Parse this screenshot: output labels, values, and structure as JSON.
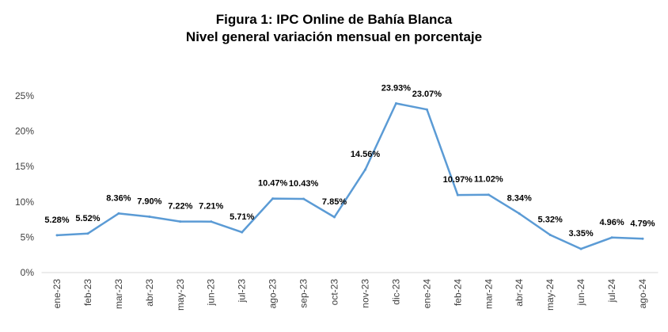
{
  "chart_data": {
    "type": "line",
    "title": "Figura 1: IPC Online de Bahía Blanca",
    "subtitle": "Nivel general variación mensual en porcentaje",
    "xlabel": "",
    "ylabel": "",
    "categories": [
      "ene-23",
      "feb-23",
      "mar-23",
      "abr-23",
      "may-23",
      "jun-23",
      "jul-23",
      "ago-23",
      "sep-23",
      "oct-23",
      "nov-23",
      "dic-23",
      "ene-24",
      "feb-24",
      "mar-24",
      "abr-24",
      "may-24",
      "jun-24",
      "jul-24",
      "ago-24"
    ],
    "series": [
      {
        "values": [
          5.28,
          5.52,
          8.36,
          7.9,
          7.22,
          7.21,
          5.71,
          10.47,
          10.43,
          7.85,
          14.56,
          23.93,
          23.07,
          10.97,
          11.02,
          8.34,
          5.32,
          3.35,
          4.96,
          4.79
        ],
        "labels": [
          "5.28%",
          "5.52%",
          "8.36%",
          "7.90%",
          "7.22%",
          "7.21%",
          "5.71%",
          "10.47%",
          "10.43%",
          "7.85%",
          "14.56%",
          "23.93%",
          "23.07%",
          "10.97%",
          "11.02%",
          "8.34%",
          "5.32%",
          "3.35%",
          "4.96%",
          "4.79%"
        ],
        "color": "#5b9bd5"
      }
    ],
    "ylim": [
      0,
      25
    ],
    "yticks": [
      0,
      5,
      10,
      15,
      20,
      25
    ],
    "ytick_labels": [
      "0%",
      "5%",
      "10%",
      "15%",
      "20%",
      "25%"
    ],
    "grid": false,
    "legend": "none"
  }
}
